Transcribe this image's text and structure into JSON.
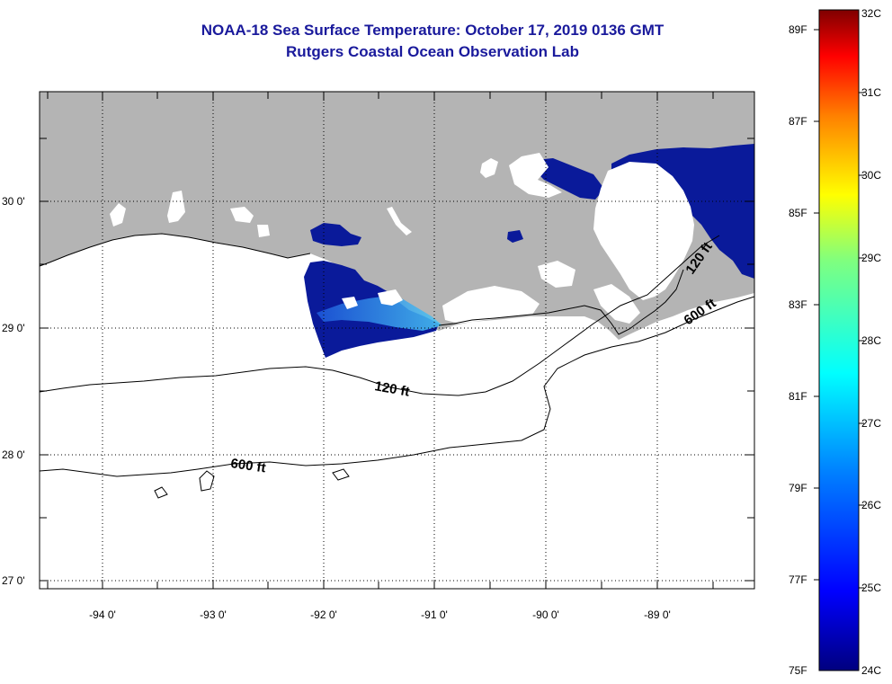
{
  "title": {
    "line1": "NOAA-18 Sea Surface Temperature:  October 17, 2019 0136 GMT",
    "line2": "Rutgers Coastal Ocean Observation Lab"
  },
  "map": {
    "lat_labels": [
      "30 0'",
      "29 0'",
      "28 0'",
      "27 0'"
    ],
    "lon_labels": [
      "-94 0'",
      "-93 0'",
      "-92 0'",
      "-91 0'",
      "-90 0'",
      "-89 0'"
    ],
    "contour_labels": [
      "120 ft",
      "120 ft",
      "600 ft",
      "600 ft"
    ],
    "colors": {
      "land": "#b4b4b4",
      "cloud": "#ffffff",
      "sst_cold": "#0a1a9a",
      "sst_mid": "#1e5adc",
      "sst_warm": "#3aaaf5"
    }
  },
  "colorbar": {
    "f_labels": [
      "89F",
      "87F",
      "85F",
      "83F",
      "81F",
      "79F",
      "77F",
      "75F"
    ],
    "c_labels": [
      "32C",
      "31C",
      "30C",
      "29C",
      "28C",
      "27C",
      "26C",
      "25C",
      "24C"
    ],
    "min_c": 24,
    "max_c": 32
  }
}
